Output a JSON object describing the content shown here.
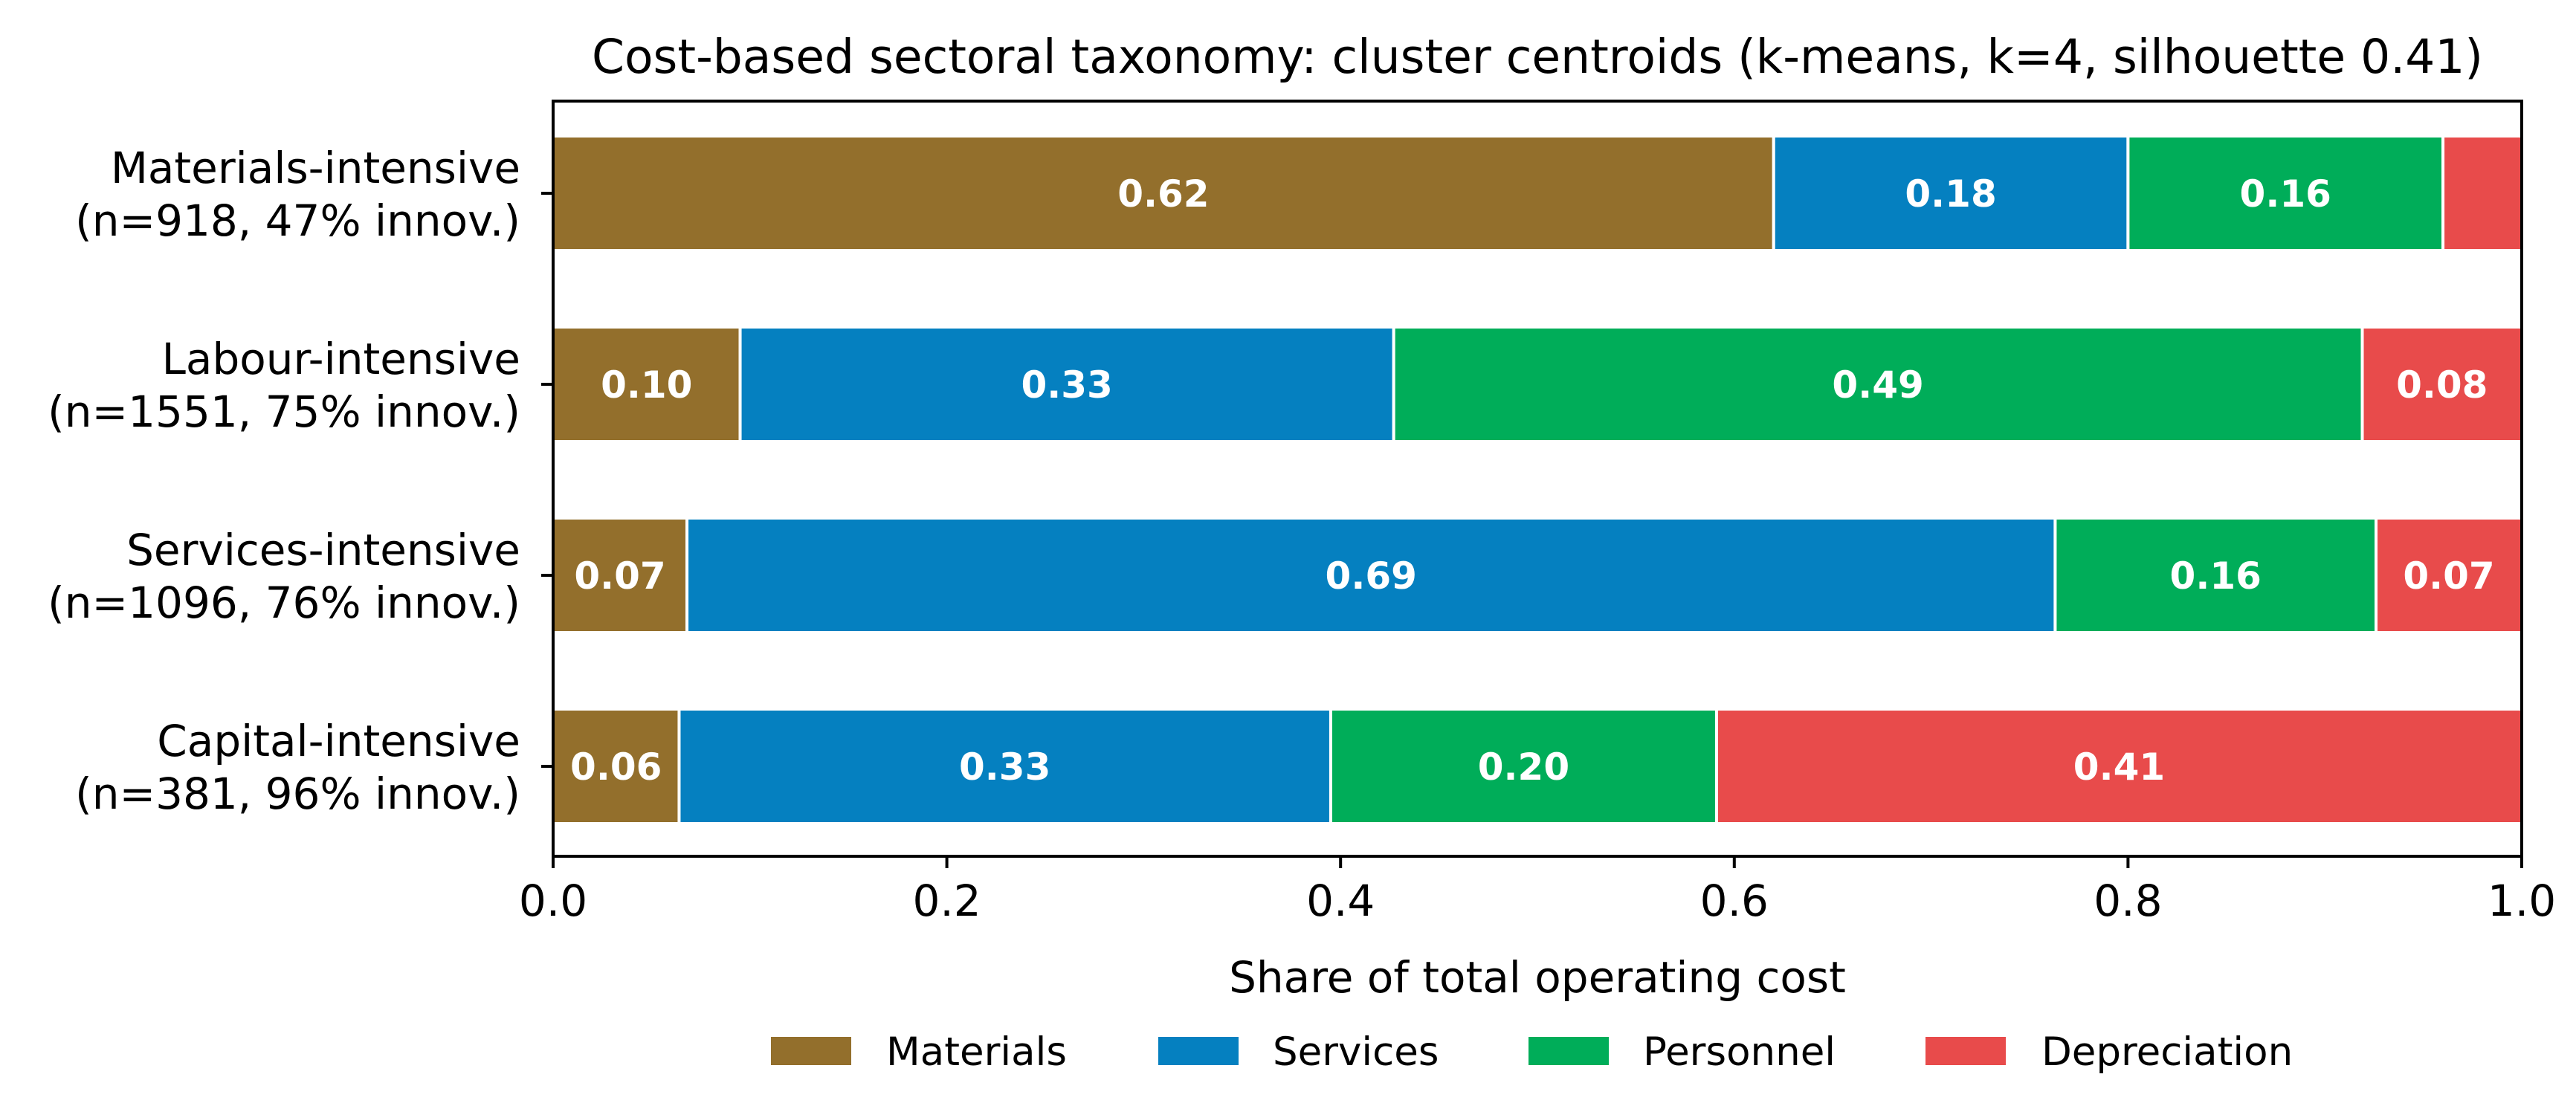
{
  "chart_data": {
    "type": "bar",
    "orientation": "horizontal",
    "stacked": true,
    "title": "Cost-based sectoral taxonomy: cluster centroids (k-means, k=4, silhouette 0.41)",
    "xlabel": "Share of total operating cost",
    "ylabel": "",
    "xlim": [
      0,
      1
    ],
    "xticks": [
      "0.0",
      "0.2",
      "0.4",
      "0.6",
      "0.8",
      "1.0"
    ],
    "grid": false,
    "legend_position": "bottom",
    "categories": [
      {
        "name": "Materials-intensive",
        "detail": "(n=918, 47% innov.)"
      },
      {
        "name": "Labour-intensive",
        "detail": "(n=1551, 75% innov.)"
      },
      {
        "name": "Services-intensive",
        "detail": "(n=1096, 76% innov.)"
      },
      {
        "name": "Capital-intensive",
        "detail": "(n=381, 96% innov.)"
      }
    ],
    "series": [
      {
        "name": "Materials",
        "color": "#936f2c",
        "values": [
          0.62,
          0.095,
          0.068,
          0.064
        ],
        "labels": [
          "0.62",
          "0.10",
          "0.07",
          "0.06"
        ]
      },
      {
        "name": "Services",
        "color": "#0580c0",
        "values": [
          0.18,
          0.332,
          0.695,
          0.331
        ],
        "labels": [
          "0.18",
          "0.33",
          "0.69",
          "0.33"
        ]
      },
      {
        "name": "Personnel",
        "color": "#00ad59",
        "values": [
          0.16,
          0.492,
          0.163,
          0.196
        ],
        "labels": [
          "0.16",
          "0.49",
          "0.16",
          "0.20"
        ]
      },
      {
        "name": "Depreciation",
        "color": "#e84b4b",
        "values": [
          0.04,
          0.081,
          0.074,
          0.409
        ],
        "labels": [
          "",
          "0.08",
          "0.07",
          "0.41"
        ]
      }
    ]
  }
}
